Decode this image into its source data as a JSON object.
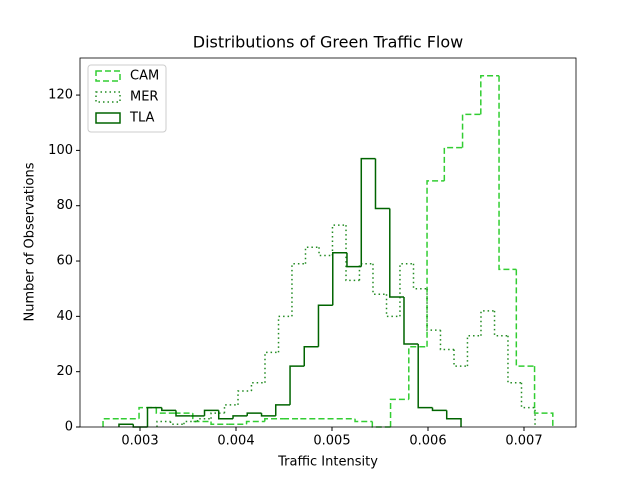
{
  "chart_data": {
    "type": "histogram",
    "title": "Distributions of Green Traffic Flow",
    "x_label": "Traffic Intensity",
    "y_label": "Number of Observations",
    "xlim": [
      0.002375,
      0.0075417
    ],
    "ylim": [
      0,
      133.4
    ],
    "xticks": [
      0.003,
      0.004,
      0.005,
      0.006,
      0.007
    ],
    "yticks": [
      0,
      20,
      40,
      60,
      80,
      100,
      120
    ],
    "legend": "upper left",
    "series": [
      {
        "name": "CAM",
        "color": "#32cd32",
        "linestyle": "dashed",
        "bins": [
          0.002615,
          0.0028,
          0.00299,
          0.00317,
          0.00336,
          0.00355,
          0.00374,
          0.00392,
          0.00411,
          0.0043,
          0.00449,
          0.00467,
          0.00486,
          0.00505,
          0.00524,
          0.00542,
          0.00561,
          0.0058,
          0.00599,
          0.00617,
          0.00636,
          0.00655,
          0.00674,
          0.00692,
          0.00711,
          0.0073
        ],
        "values": [
          3,
          3,
          7,
          5,
          5,
          2,
          1,
          1,
          2,
          3,
          3,
          3,
          3,
          3,
          2,
          0,
          10,
          29,
          89,
          101,
          113,
          127,
          57,
          22,
          5
        ]
      },
      {
        "name": "MER",
        "color": "#228b22",
        "linestyle": "dotted",
        "bins": [
          0.003177,
          0.003318,
          0.003458,
          0.003599,
          0.00374,
          0.00388,
          0.004021,
          0.004161,
          0.004302,
          0.004443,
          0.004583,
          0.004724,
          0.004865,
          0.005005,
          0.005146,
          0.005286,
          0.005427,
          0.005568,
          0.005708,
          0.005849,
          0.00599,
          0.00613,
          0.006271,
          0.006411,
          0.006552,
          0.006693,
          0.006833,
          0.006974,
          0.007115
        ],
        "values": [
          2,
          1,
          2,
          3,
          5,
          8,
          13,
          16,
          27,
          40,
          59,
          65,
          62,
          73,
          53,
          59,
          48,
          40,
          59,
          50,
          35,
          28,
          22,
          33,
          42,
          33,
          16,
          7
        ]
      },
      {
        "name": "TLA",
        "color": "#006400",
        "linestyle": "solid",
        "bins": [
          0.002781,
          0.00293,
          0.003078,
          0.003227,
          0.003375,
          0.003523,
          0.003672,
          0.00382,
          0.003969,
          0.004117,
          0.004266,
          0.004414,
          0.004563,
          0.004711,
          0.004859,
          0.005008,
          0.005156,
          0.005305,
          0.005453,
          0.005602,
          0.00575,
          0.005898,
          0.006047,
          0.006195,
          0.006344
        ],
        "values": [
          1,
          0,
          7,
          6,
          4,
          4,
          6,
          3,
          4,
          5,
          4,
          8,
          22,
          29,
          44,
          63,
          58,
          97,
          79,
          47,
          30,
          7,
          6,
          3
        ]
      }
    ]
  }
}
